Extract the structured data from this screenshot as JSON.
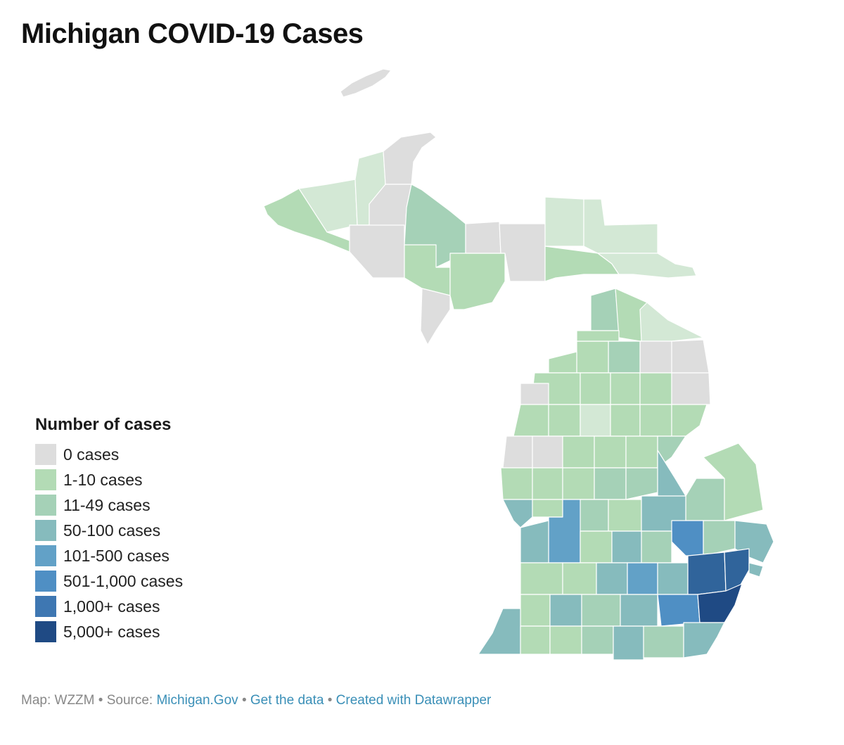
{
  "title": "Michigan COVID-19 Cases",
  "legend": {
    "title": "Number of cases",
    "items": [
      {
        "label": "0 cases",
        "color": "#dddddd"
      },
      {
        "label": "1-10 cases",
        "color": "#b3dbb5"
      },
      {
        "label": "11-49 cases",
        "color": "#a5d1b7"
      },
      {
        "label": "50-100 cases",
        "color": "#86bbbd"
      },
      {
        "label": "101-500 cases",
        "color": "#62a1c7"
      },
      {
        "label": "501-1,000 cases",
        "color": "#4f8fc4"
      },
      {
        "label": "1,000+ cases",
        "color": "#3e77b2"
      },
      {
        "label": "5,000+ cases",
        "color": "#1f4a84"
      }
    ]
  },
  "footer": {
    "prefix": "Map: WZZM",
    "source_label": "Source:",
    "source_link": "Michigan.Gov",
    "get_data": "Get the data",
    "created_with": "Created with Datawrapper",
    "separator": "•"
  },
  "region_colors": {
    "zero": "#dddddd",
    "light": "#d3e8d5",
    "low": "#b3dbb5",
    "mid": "#a5d1b7",
    "fifty": "#86bbbd",
    "hundred": "#62a1c7",
    "high": "#4f8fc4",
    "thousand": "#30649b",
    "top": "#1f4a84"
  }
}
